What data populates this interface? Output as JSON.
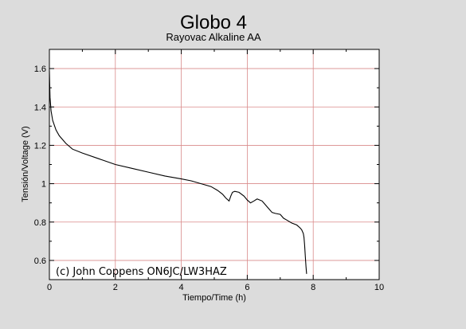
{
  "chart_data": {
    "type": "line",
    "title": "Globo 4",
    "subtitle": "Rayovac Alkaline AA",
    "xlabel": "Tiempo/Time (h)",
    "ylabel": "Tensión/Voltage (V)",
    "xlim": [
      0,
      10
    ],
    "ylim": [
      0.5,
      1.7
    ],
    "xticks": [
      0,
      2,
      4,
      6,
      8,
      10
    ],
    "yticks": [
      0.6,
      0.8,
      1,
      1.2,
      1.4,
      1.6
    ],
    "xtick_labels": [
      "0",
      "2",
      "4",
      "6",
      "8",
      "10"
    ],
    "ytick_labels": [
      "0.6",
      "0.8",
      "1",
      "1.2",
      "1.4",
      "1.6"
    ],
    "grid": true,
    "annotation": "(c) John Coppens ON6JC/LW3HAZ",
    "series": [
      {
        "x": [
          0,
          0.02,
          0.05,
          0.1,
          0.2,
          0.3,
          0.5,
          0.7,
          1.0,
          1.5,
          2.0,
          2.5,
          3.0,
          3.5,
          4.0,
          4.3,
          4.6,
          4.9,
          5.1,
          5.25,
          5.35,
          5.45,
          5.5,
          5.55,
          5.62,
          5.75,
          5.9,
          6.0,
          6.1,
          6.2,
          6.3,
          6.45,
          6.55,
          6.65,
          6.75,
          6.85,
          7.0,
          7.1,
          7.2,
          7.35,
          7.5,
          7.6,
          7.65,
          7.7,
          7.72,
          7.74,
          7.76,
          7.78,
          7.8
        ],
        "y": [
          1.59,
          1.45,
          1.38,
          1.33,
          1.28,
          1.25,
          1.21,
          1.18,
          1.16,
          1.13,
          1.1,
          1.08,
          1.06,
          1.04,
          1.025,
          1.015,
          1.0,
          0.985,
          0.965,
          0.945,
          0.925,
          0.91,
          0.935,
          0.955,
          0.96,
          0.955,
          0.935,
          0.915,
          0.9,
          0.91,
          0.92,
          0.91,
          0.89,
          0.87,
          0.85,
          0.845,
          0.84,
          0.82,
          0.81,
          0.795,
          0.785,
          0.77,
          0.76,
          0.74,
          0.72,
          0.68,
          0.62,
          0.57,
          0.53
        ]
      }
    ]
  }
}
